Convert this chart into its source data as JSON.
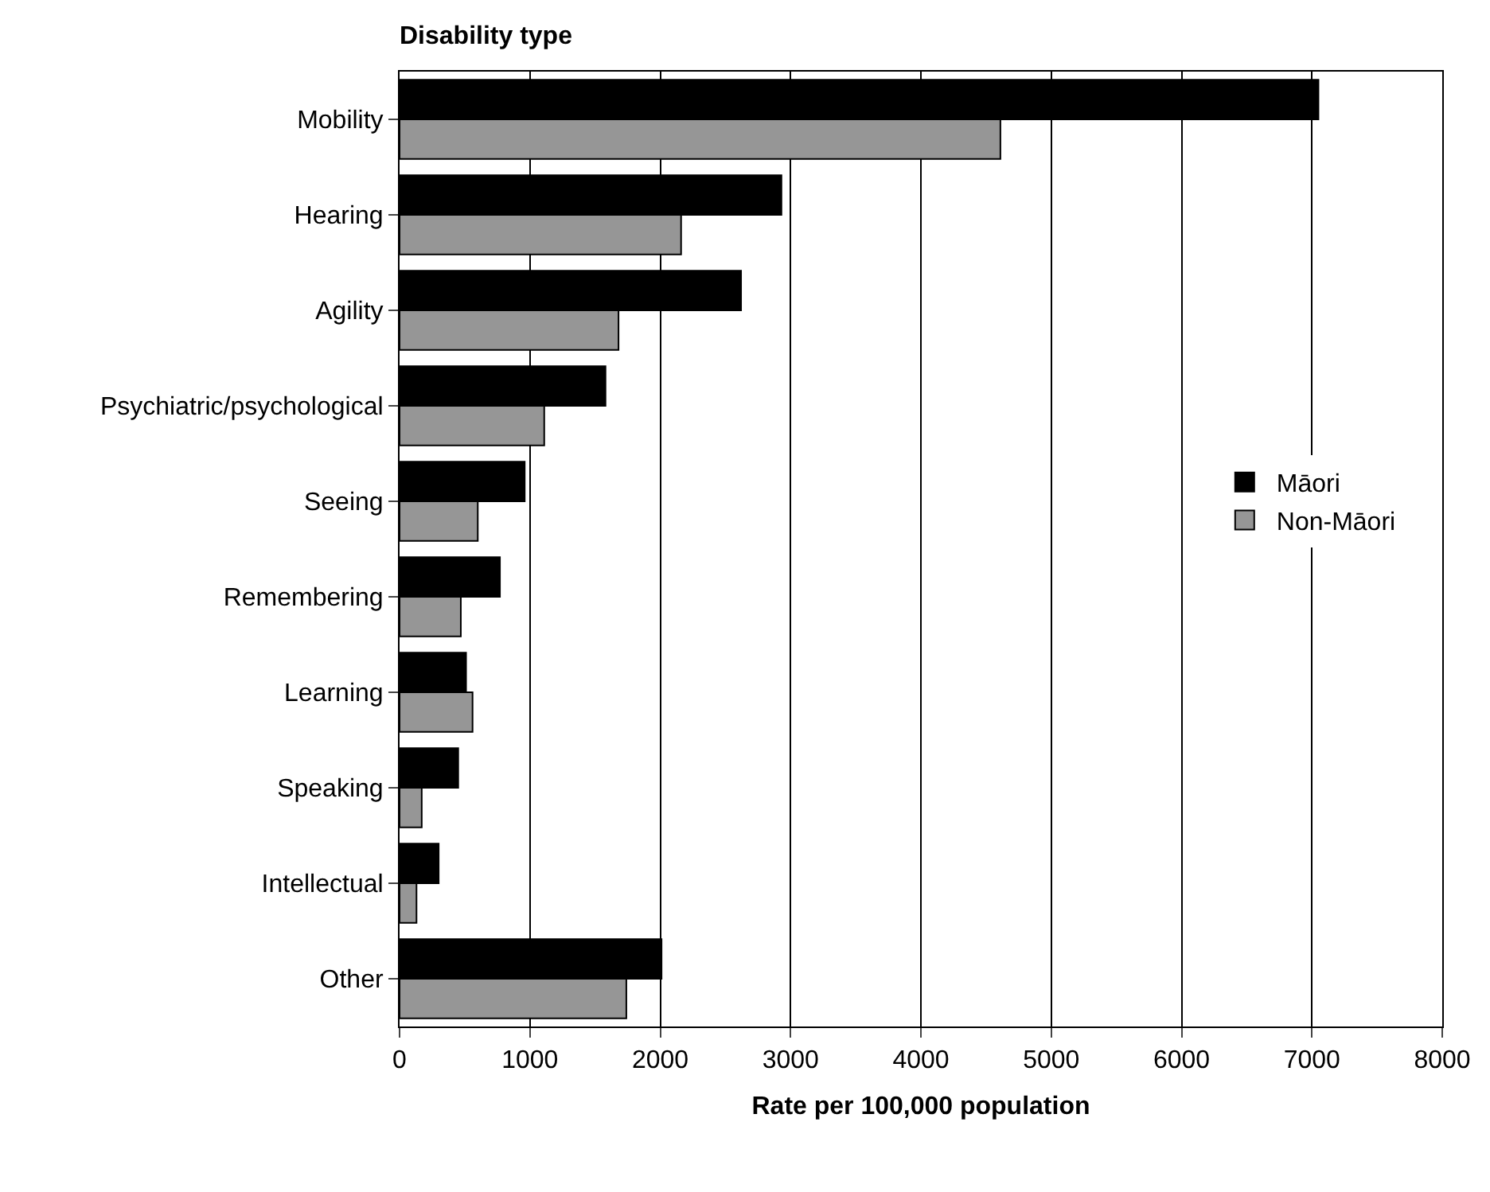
{
  "chart_data": {
    "type": "bar",
    "orientation": "horizontal",
    "title": "Disability type",
    "xlabel": "Rate per 100,000 population",
    "categories": [
      "Mobility",
      "Hearing",
      "Agility",
      "Psychiatric/psychological",
      "Seeing",
      "Remembering",
      "Learning",
      "Speaking",
      "Intellectual",
      "Other"
    ],
    "series": [
      {
        "name": "Māori",
        "color": "#000000",
        "values": [
          7050,
          2930,
          2620,
          1580,
          960,
          770,
          510,
          450,
          300,
          2010
        ]
      },
      {
        "name": "Non-Māori",
        "color": "#969696",
        "values": [
          4610,
          2160,
          1680,
          1110,
          600,
          470,
          560,
          170,
          130,
          1740
        ]
      }
    ],
    "xlim": [
      0,
      8000
    ],
    "xticks": [
      0,
      1000,
      2000,
      3000,
      4000,
      5000,
      6000,
      7000,
      8000
    ],
    "grid": "x",
    "legend": "right"
  }
}
